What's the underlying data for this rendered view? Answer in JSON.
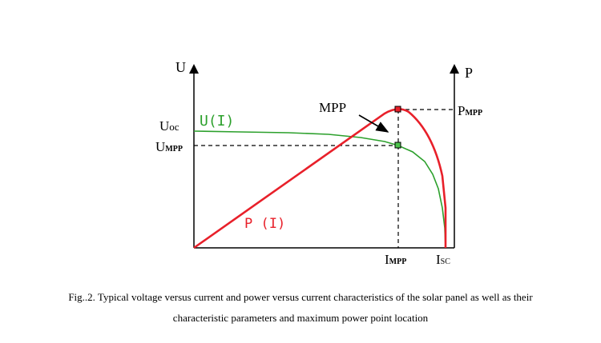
{
  "diagram": {
    "axis_left_label": "U",
    "axis_right_label": "P",
    "voltage_curve_label": "U(I)",
    "power_curve_label": "P (I)",
    "uoc_label": {
      "main": "U",
      "sub": "oc"
    },
    "umpp_label": {
      "main": "U",
      "sub": "MPP"
    },
    "pmpp_label": {
      "main": "P",
      "sub": "MPP"
    },
    "impp_label": {
      "main": "I",
      "sub": "MPP"
    },
    "isc_label": {
      "main": "I",
      "sub": "SC"
    },
    "mpp_label": "MPP",
    "colors": {
      "voltage_curve": "#2ca02c",
      "power_curve": "#e8202a",
      "axes": "#000000",
      "marker_power_fill": "#e8202a",
      "marker_voltage_fill": "#4cc24c"
    }
  },
  "caption": {
    "line1": "Fig..2. Typical voltage versus current and power versus current characteristics of the solar panel as well as their",
    "line2": "characteristic parameters and maximum power point location"
  }
}
